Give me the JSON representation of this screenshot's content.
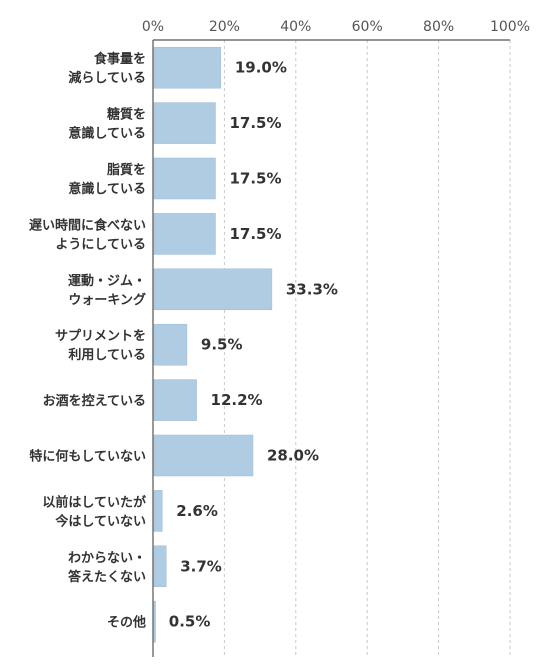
{
  "chart_data": {
    "type": "bar",
    "orientation": "horizontal",
    "title": "",
    "xlabel": "",
    "ylabel": "",
    "xlim": [
      0,
      100
    ],
    "x_ticks": [
      0,
      20,
      40,
      60,
      80,
      100
    ],
    "x_tick_labels": [
      "0%",
      "20%",
      "40%",
      "60%",
      "80%",
      "100%"
    ],
    "grid": "vertical-dashed",
    "bar_color": "#b0cce3",
    "categories": [
      [
        "食事量を",
        "減らしている"
      ],
      [
        "糖質を",
        "意識している"
      ],
      [
        "脂質を",
        "意識している"
      ],
      [
        "遅い時間に食べない",
        "ようにしている"
      ],
      [
        "運動・ジム・",
        "ウォーキング"
      ],
      [
        "サプリメントを",
        "利用している"
      ],
      [
        "お酒を控えている"
      ],
      [
        "特に何もしていない"
      ],
      [
        "以前はしていたが",
        "今はしていない"
      ],
      [
        "わからない・",
        "答えたくない"
      ],
      [
        "その他"
      ]
    ],
    "values": [
      19.0,
      17.5,
      17.5,
      17.5,
      33.3,
      9.5,
      12.2,
      28.0,
      2.6,
      3.7,
      0.5
    ],
    "value_labels": [
      "19.0%",
      "17.5%",
      "17.5%",
      "17.5%",
      "33.3%",
      "9.5%",
      "12.2%",
      "28.0%",
      "2.6%",
      "3.7%",
      "0.5%"
    ]
  }
}
